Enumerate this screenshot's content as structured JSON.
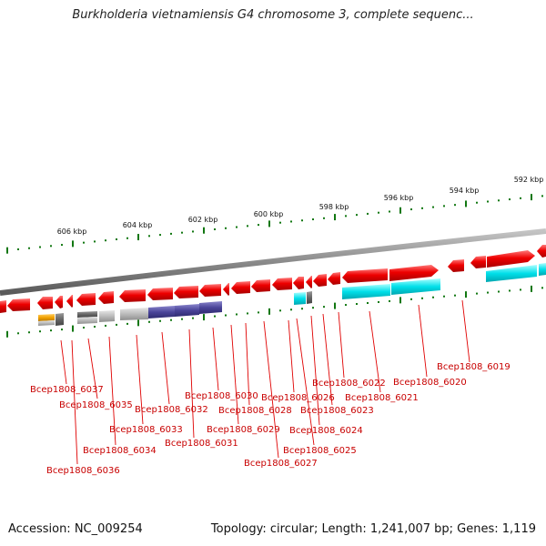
{
  "title": "Burkholderia vietnamiensis G4 chromosome 3, complete sequenc...",
  "footer": {
    "accession": "Accession: NC_009254",
    "topology": "Topology: circular; Length: 1,241,007 bp; Genes: 1,119"
  },
  "colors": {
    "gene": "#e80000",
    "backbone": "#888888",
    "tick": "#117711",
    "label": "#c80000",
    "cyan": "#00dde8",
    "navy": "#4a4499",
    "orange": "#f2a100",
    "darkgray": "#666666",
    "lightgray": "#bbbbbb"
  },
  "scale": {
    "unit": "kbp",
    "ticks": [
      "606 kbp",
      "604 kbp",
      "602 kbp",
      "600 kbp",
      "598 kbp",
      "596 kbp",
      "594 kbp",
      "592 kbp"
    ]
  },
  "genes": [
    {
      "name": "Bcep1808_6037"
    },
    {
      "name": "Bcep1808_6036"
    },
    {
      "name": "Bcep1808_6035"
    },
    {
      "name": "Bcep1808_6034"
    },
    {
      "name": "Bcep1808_6033"
    },
    {
      "name": "Bcep1808_6032"
    },
    {
      "name": "Bcep1808_6031"
    },
    {
      "name": "Bcep1808_6030"
    },
    {
      "name": "Bcep1808_6029"
    },
    {
      "name": "Bcep1808_6028"
    },
    {
      "name": "Bcep1808_6027"
    },
    {
      "name": "Bcep1808_6026"
    },
    {
      "name": "Bcep1808_6025"
    },
    {
      "name": "Bcep1808_6024"
    },
    {
      "name": "Bcep1808_6023"
    },
    {
      "name": "Bcep1808_6022"
    },
    {
      "name": "Bcep1808_6021"
    },
    {
      "name": "Bcep1808_6020"
    },
    {
      "name": "Bcep1808_6019"
    }
  ]
}
